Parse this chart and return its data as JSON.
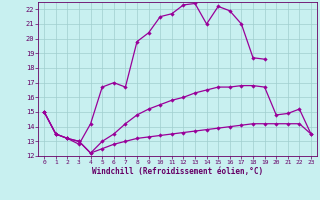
{
  "title": "",
  "xlabel": "Windchill (Refroidissement éolien,°C)",
  "xlim": [
    -0.5,
    23.5
  ],
  "ylim": [
    12,
    22.5
  ],
  "background_color": "#c8f0f0",
  "grid_color": "#a0cece",
  "line_color": "#990099",
  "xticks": [
    0,
    1,
    2,
    3,
    4,
    5,
    6,
    7,
    8,
    9,
    10,
    11,
    12,
    13,
    14,
    15,
    16,
    17,
    18,
    19,
    20,
    21,
    22,
    23
  ],
  "yticks": [
    12,
    13,
    14,
    15,
    16,
    17,
    18,
    19,
    20,
    21,
    22
  ],
  "curve1_x": [
    0,
    1,
    2,
    3,
    4,
    5,
    6,
    7,
    8,
    9,
    10,
    11,
    12,
    13,
    14,
    15,
    16,
    17,
    18,
    19,
    20,
    21,
    22,
    23
  ],
  "curve1_y": [
    15.0,
    13.5,
    13.2,
    12.8,
    14.2,
    16.7,
    17.0,
    16.7,
    19.8,
    20.4,
    21.5,
    21.7,
    22.3,
    22.4,
    21.0,
    22.2,
    21.9,
    21.0,
    18.7,
    18.6,
    null,
    null,
    null,
    null
  ],
  "curve2_x": [
    0,
    1,
    2,
    3,
    4,
    5,
    6,
    7,
    8,
    9,
    10,
    11,
    12,
    13,
    14,
    15,
    16,
    17,
    18,
    19,
    20,
    21,
    22,
    23
  ],
  "curve2_y": [
    15.0,
    13.5,
    13.2,
    13.0,
    12.2,
    13.0,
    13.5,
    14.2,
    14.8,
    15.2,
    15.5,
    15.8,
    16.0,
    16.3,
    16.5,
    16.7,
    16.7,
    16.8,
    16.8,
    16.7,
    14.8,
    14.9,
    15.2,
    13.5
  ],
  "curve3_x": [
    0,
    1,
    2,
    3,
    4,
    5,
    6,
    7,
    8,
    9,
    10,
    11,
    12,
    13,
    14,
    15,
    16,
    17,
    18,
    19,
    20,
    21,
    22,
    23
  ],
  "curve3_y": [
    15.0,
    13.5,
    13.2,
    13.0,
    12.2,
    12.5,
    12.8,
    13.0,
    13.2,
    13.3,
    13.4,
    13.5,
    13.6,
    13.7,
    13.8,
    13.9,
    14.0,
    14.1,
    14.2,
    14.2,
    14.2,
    14.2,
    14.2,
    13.5
  ]
}
